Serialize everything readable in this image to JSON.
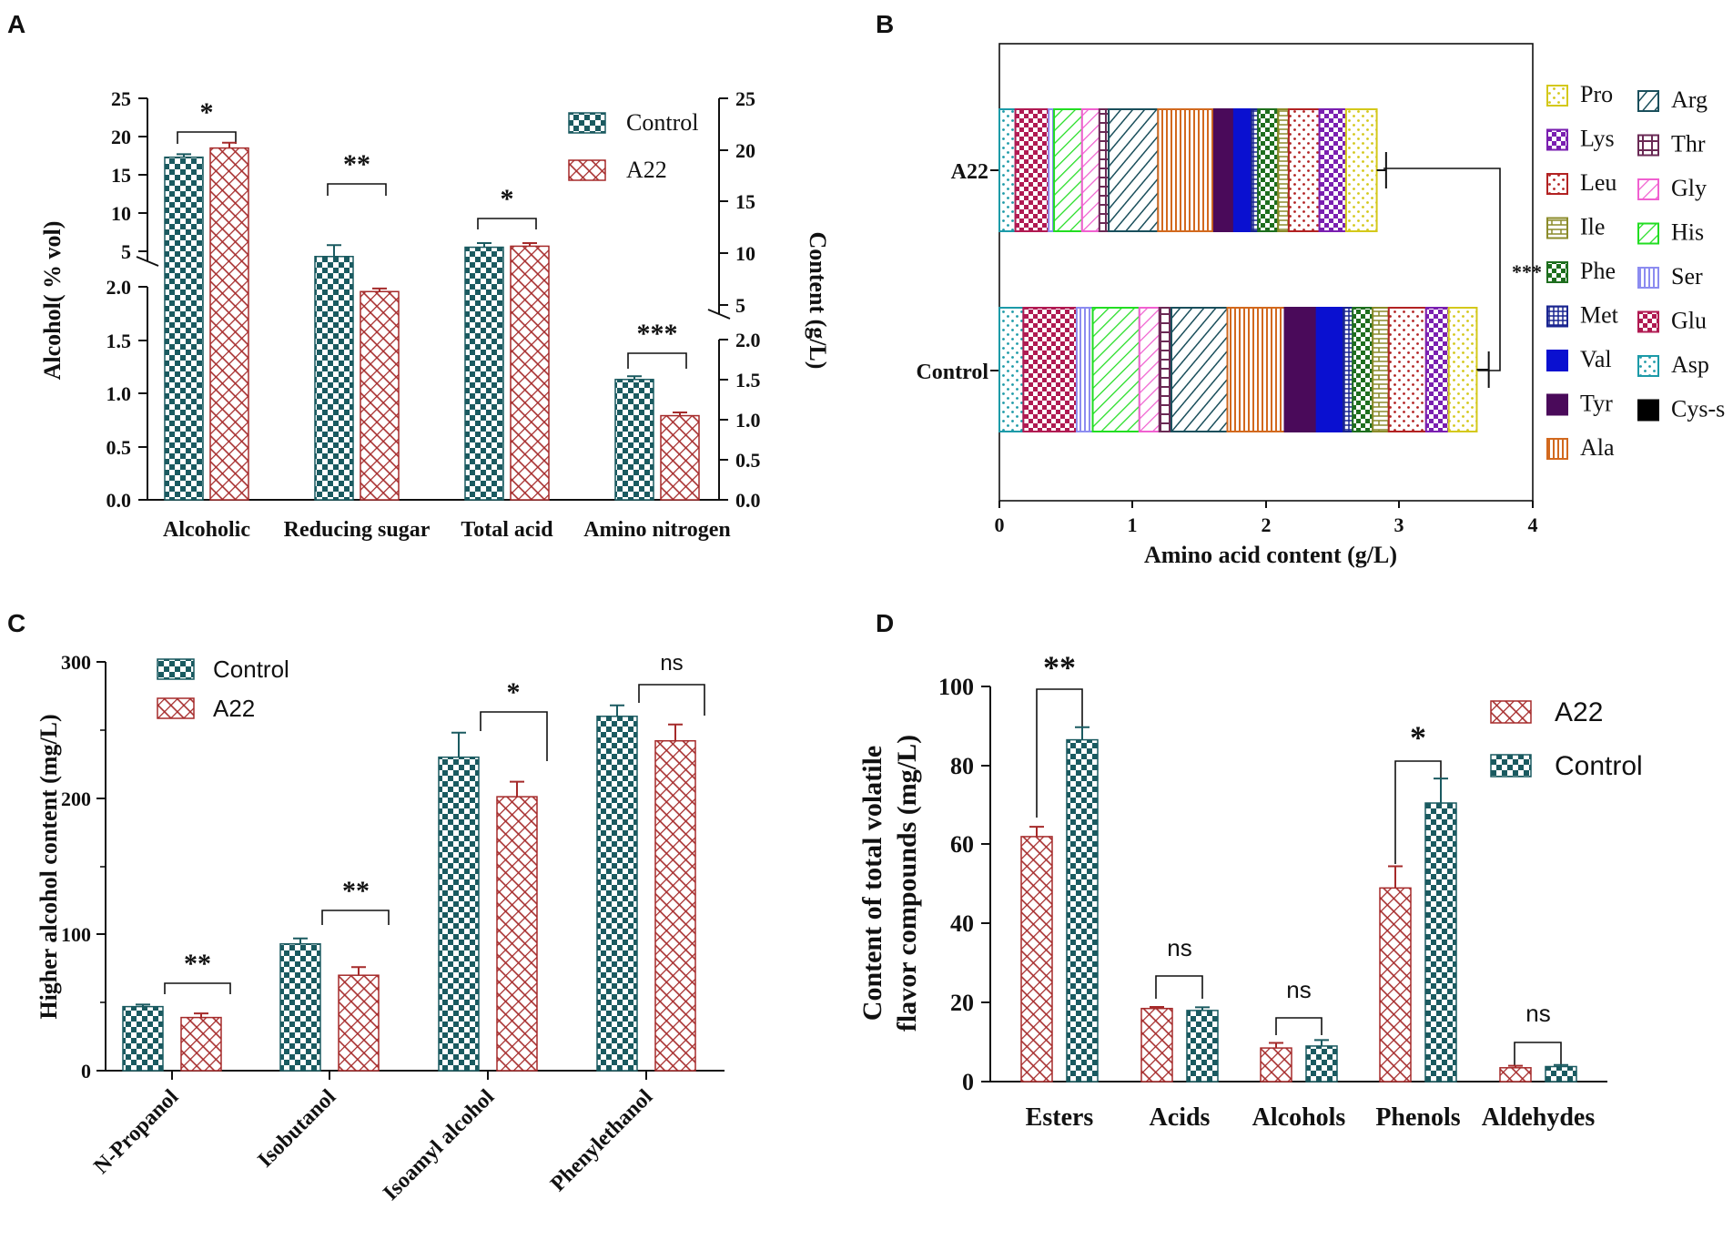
{
  "colors": {
    "control": "#1a5a60",
    "a22": "#a52a2a",
    "axis": "#111111"
  },
  "chart_data": [
    {
      "panel": "A",
      "type": "bar",
      "categories": [
        "Alcoholic",
        "Reducing sugar",
        "Total acid",
        "Amino nitrogen"
      ],
      "series": [
        {
          "name": "Control",
          "values": [
            17.3,
            9.7,
            10.6,
            1.13
          ],
          "errors": [
            0.4,
            1.1,
            0.4,
            0.03
          ]
        },
        {
          "name": "A22",
          "values": [
            18.5,
            6.3,
            10.7,
            0.79
          ],
          "errors": [
            0.7,
            0.3,
            0.3,
            0.03
          ]
        }
      ],
      "ylabel_left": "Alcohol( % vol)",
      "ylabel_right": "Content (g/L)",
      "left_upper_ticks": [
        "25",
        "20",
        "15",
        "10",
        "5"
      ],
      "left_lower_ticks": [
        "2.0",
        "1.5",
        "1.0",
        "0.5",
        "0.0"
      ],
      "right_upper_ticks": [
        "25",
        "20",
        "15",
        "10",
        "5"
      ],
      "right_lower_ticks": [
        "2.0",
        "1.5",
        "1.0",
        "0.5",
        "0.0"
      ],
      "significance": [
        "*",
        "**",
        "*",
        "***"
      ],
      "legend": [
        "Control",
        "A22"
      ]
    },
    {
      "panel": "B",
      "type": "stacked_bar",
      "orientation": "horizontal",
      "categories": [
        "A22",
        "Control"
      ],
      "segments": [
        {
          "name": "Asp",
          "values": [
            0.12,
            0.18
          ],
          "color": "#1c9aa8",
          "pattern": "dots"
        },
        {
          "name": "Glu",
          "values": [
            0.25,
            0.4
          ],
          "color": "#b01a52",
          "pattern": "check"
        },
        {
          "name": "Ser",
          "values": [
            0.04,
            0.12
          ],
          "color": "#8c8cf0",
          "pattern": "vlines"
        },
        {
          "name": "His",
          "values": [
            0.21,
            0.35
          ],
          "color": "#22dd22",
          "pattern": "diag"
        },
        {
          "name": "Gly",
          "values": [
            0.13,
            0.15
          ],
          "color": "#f060d0",
          "pattern": "diag"
        },
        {
          "name": "Thr",
          "values": [
            0.07,
            0.09
          ],
          "color": "#6a2a55",
          "pattern": "cross"
        },
        {
          "name": "Arg",
          "values": [
            0.37,
            0.42
          ],
          "color": "#1a4f5c",
          "pattern": "diagb"
        },
        {
          "name": "Ala",
          "values": [
            0.42,
            0.43
          ],
          "color": "#d2691e",
          "pattern": "vlines"
        },
        {
          "name": "Cys-s",
          "values": [
            0.0,
            0.0
          ],
          "color": "#000000",
          "pattern": "solid"
        },
        {
          "name": "Tyr",
          "values": [
            0.15,
            0.24
          ],
          "color": "#4a0a5a",
          "pattern": "solid"
        },
        {
          "name": "Val",
          "values": [
            0.13,
            0.2
          ],
          "color": "#0a10d0",
          "pattern": "solid"
        },
        {
          "name": "Met",
          "values": [
            0.05,
            0.07
          ],
          "color": "#1a2590",
          "pattern": "grid"
        },
        {
          "name": "Phe",
          "values": [
            0.15,
            0.15
          ],
          "color": "#1e6e1e",
          "pattern": "check"
        },
        {
          "name": "Ile",
          "values": [
            0.08,
            0.12
          ],
          "color": "#8b8b2a",
          "pattern": "bricks"
        },
        {
          "name": "Leu",
          "values": [
            0.23,
            0.28
          ],
          "color": "#b22222",
          "pattern": "dots"
        },
        {
          "name": "Lys",
          "values": [
            0.2,
            0.17
          ],
          "color": "#7a1fb0",
          "pattern": "check"
        },
        {
          "name": "Pro",
          "values": [
            0.23,
            0.21
          ],
          "color": "#d4c81a",
          "pattern": "dots"
        }
      ],
      "totals_error": [
        0.07,
        0.09
      ],
      "xlabel": "Amino acid content (g/L)",
      "xticks": [
        "0",
        "1",
        "2",
        "3",
        "4"
      ],
      "xlim": [
        0,
        4
      ],
      "significance": "***",
      "legend_col1": [
        "Pro",
        "Lys",
        "Leu",
        "Ile",
        "Phe",
        "Met",
        "Val",
        "Tyr",
        "Ala"
      ],
      "legend_col2": [
        "Arg",
        "Thr",
        "Gly",
        "His",
        "Ser",
        "Glu",
        "Asp",
        "Cys-s"
      ]
    },
    {
      "panel": "C",
      "type": "bar",
      "categories": [
        "N-Propanol",
        "Isobutanol",
        "Isoamyl alcohol",
        "Phenylethanol"
      ],
      "series": [
        {
          "name": "Control",
          "values": [
            47,
            93,
            230,
            260
          ],
          "errors": [
            1.5,
            4,
            18,
            8
          ]
        },
        {
          "name": "A22",
          "values": [
            39,
            70,
            201,
            242
          ],
          "errors": [
            3,
            6,
            11,
            12
          ]
        }
      ],
      "ylabel": "Higher alcohol content (mg/L)",
      "yticks": [
        "0",
        "100",
        "200",
        "300"
      ],
      "ylim": [
        0,
        300
      ],
      "significance": [
        "**",
        "**",
        "*",
        "ns"
      ],
      "legend": [
        "Control",
        "A22"
      ]
    },
    {
      "panel": "D",
      "type": "bar",
      "categories": [
        "Esters",
        "Acids",
        "Alcohols",
        "Phenols",
        "Aldehydes"
      ],
      "series": [
        {
          "name": "A22",
          "values": [
            62,
            18.5,
            8.5,
            49,
            3.5
          ],
          "errors": [
            2.5,
            0.4,
            1.3,
            5.5,
            0.5
          ]
        },
        {
          "name": "Control",
          "values": [
            86.5,
            18,
            9,
            70.5,
            3.8
          ],
          "errors": [
            3.2,
            0.8,
            1.5,
            6.2,
            0.4
          ]
        }
      ],
      "ylabel_line1": "Content of total volatile",
      "ylabel_line2": "flavor compounds (mg/L)",
      "yticks": [
        "0",
        "20",
        "40",
        "60",
        "80",
        "100"
      ],
      "ylim": [
        0,
        100
      ],
      "significance": [
        "**",
        "ns",
        "ns",
        "*",
        "ns"
      ],
      "legend": [
        "A22",
        "Control"
      ]
    }
  ]
}
